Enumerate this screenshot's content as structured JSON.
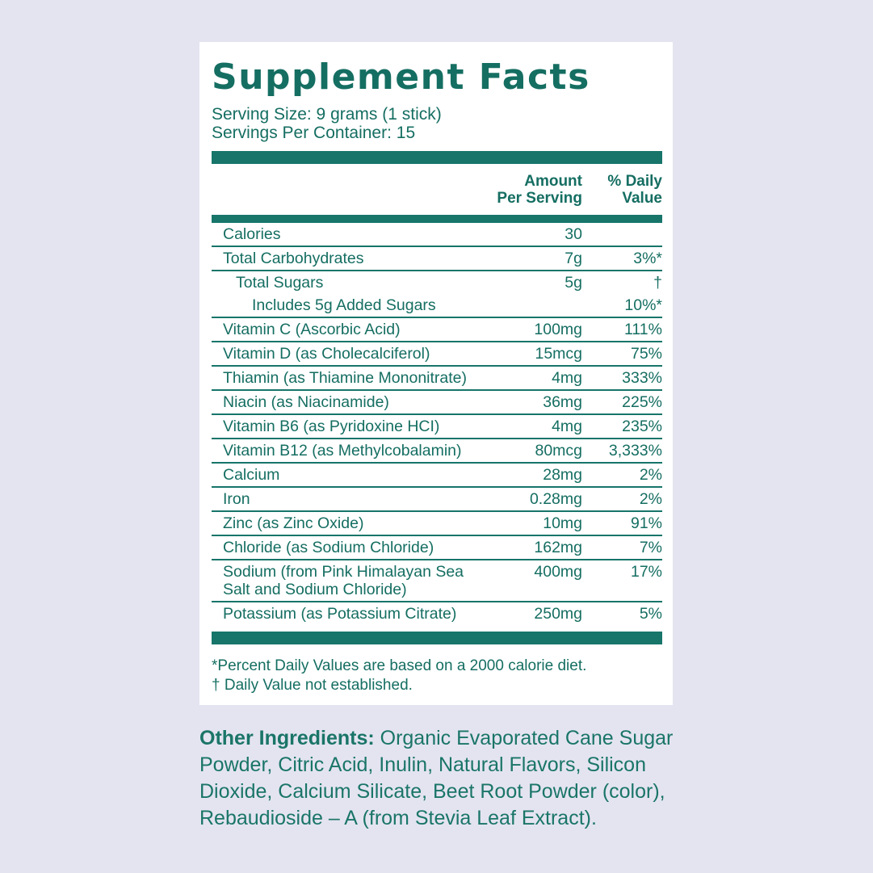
{
  "colors": {
    "accent_teal": "#17756A",
    "text_teal": "#156E62",
    "background_lavender": "#E4E4F1",
    "card_white": "#FFFFFF"
  },
  "panel": {
    "title": "Supplement Facts",
    "serving_size": "Serving Size: 9 grams (1 stick)",
    "servings_per_container": "Servings Per Container: 15",
    "col_amount": "Amount\nPer Serving",
    "col_dv": "% Daily\nValue",
    "rows": [
      {
        "name": "Calories",
        "amount": "30",
        "dv": ""
      },
      {
        "name": "Total Carbohydrates",
        "amount": "7g",
        "dv": "3%*"
      },
      {
        "name": "Total Sugars",
        "amount": "5g",
        "dv": "†"
      },
      {
        "name": "Includes 5g Added Sugars",
        "amount": "",
        "dv": "10%*"
      },
      {
        "name": "Vitamin C (Ascorbic Acid)",
        "amount": "100mg",
        "dv": "111%"
      },
      {
        "name": "Vitamin D (as Cholecalciferol)",
        "amount": "15mcg",
        "dv": "75%"
      },
      {
        "name": "Thiamin (as Thiamine Mononitrate)",
        "amount": "4mg",
        "dv": "333%"
      },
      {
        "name": "Niacin (as Niacinamide)",
        "amount": "36mg",
        "dv": "225%"
      },
      {
        "name": "Vitamin B6 (as Pyridoxine HCI)",
        "amount": "4mg",
        "dv": "235%"
      },
      {
        "name": "Vitamin B12 (as Methylcobalamin)",
        "amount": "80mcg",
        "dv": "3,333%"
      },
      {
        "name": "Calcium",
        "amount": "28mg",
        "dv": "2%"
      },
      {
        "name": "Iron",
        "amount": "0.28mg",
        "dv": "2%"
      },
      {
        "name": "Zinc (as Zinc Oxide)",
        "amount": "10mg",
        "dv": "91%"
      },
      {
        "name": "Chloride (as Sodium Chloride)",
        "amount": "162mg",
        "dv": "7%"
      },
      {
        "name": "Sodium (from Pink Himalayan Sea Salt and Sodium Chloride)",
        "amount": "400mg",
        "dv": "17%"
      },
      {
        "name": "Potassium (as Potassium Citrate)",
        "amount": "250mg",
        "dv": "5%"
      }
    ],
    "footnotes": [
      "*Percent Daily Values are based on a 2000 calorie diet.",
      "† Daily Value not established."
    ]
  },
  "other_ingredients": {
    "label": "Other Ingredients:",
    "text": " Organic Evaporated Cane Sugar Powder, Citric Acid, Inulin, Natural Flavors, Silicon Dioxide, Calcium Silicate, Beet Root Powder (color), Rebaudioside – A (from Stevia Leaf Extract)."
  }
}
